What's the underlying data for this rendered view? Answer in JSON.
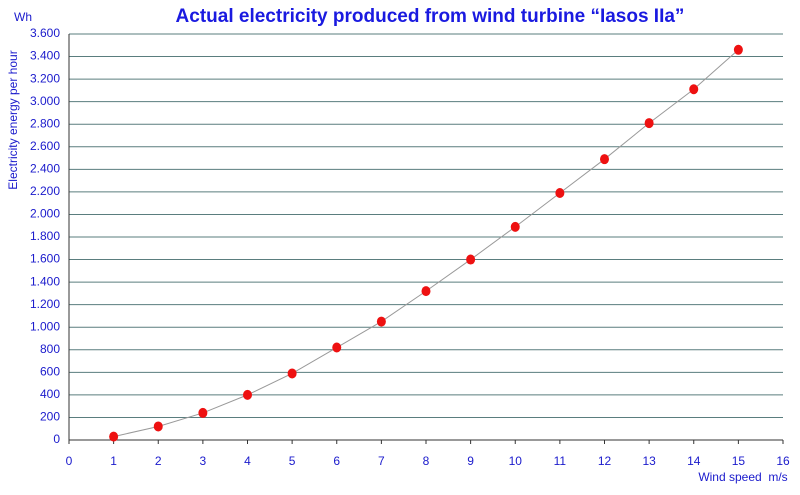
{
  "chart_data": {
    "type": "scatter",
    "title": "Actual electricity produced from wind turbine “Iasos IIa”",
    "y_unit": "Wh",
    "y_label": "Electricity energy per hour",
    "x_label": "Wind speed",
    "x_unit": "m/s",
    "x": [
      1,
      2,
      3,
      4,
      5,
      6,
      7,
      8,
      9,
      10,
      11,
      12,
      13,
      14,
      15
    ],
    "series": [
      {
        "name": "Actual electricity",
        "color": "#ee1111",
        "line_color": "#999999",
        "values": [
          30,
          120,
          240,
          400,
          590,
          820,
          1050,
          1320,
          1600,
          1890,
          2190,
          2490,
          2810,
          3110,
          3460
        ]
      }
    ],
    "xlim": [
      0,
      16
    ],
    "xticks": [
      0,
      1,
      2,
      3,
      4,
      5,
      6,
      7,
      8,
      9,
      10,
      11,
      12,
      13,
      14,
      15,
      16
    ],
    "ylim": [
      0,
      3600
    ],
    "yticks": [
      0,
      200,
      400,
      600,
      800,
      {
        "value": 1000,
        "label": "1.000"
      },
      {
        "value": 1200,
        "label": "1.200"
      },
      {
        "value": 1400,
        "label": "1.400"
      },
      {
        "value": 1600,
        "label": "1.600"
      },
      {
        "value": 1800,
        "label": "1.800"
      },
      {
        "value": 2000,
        "label": "2.000"
      },
      {
        "value": 2200,
        "label": "2.200"
      },
      {
        "value": 2400,
        "label": "2.400"
      },
      {
        "value": 2600,
        "label": "2.600"
      },
      {
        "value": 2800,
        "label": "2.800"
      },
      {
        "value": 3000,
        "label": "3.000"
      },
      {
        "value": 3200,
        "label": "3.200"
      },
      {
        "value": 3400,
        "label": "3.400"
      },
      {
        "value": 3600,
        "label": "3.600"
      }
    ],
    "grid": true
  }
}
